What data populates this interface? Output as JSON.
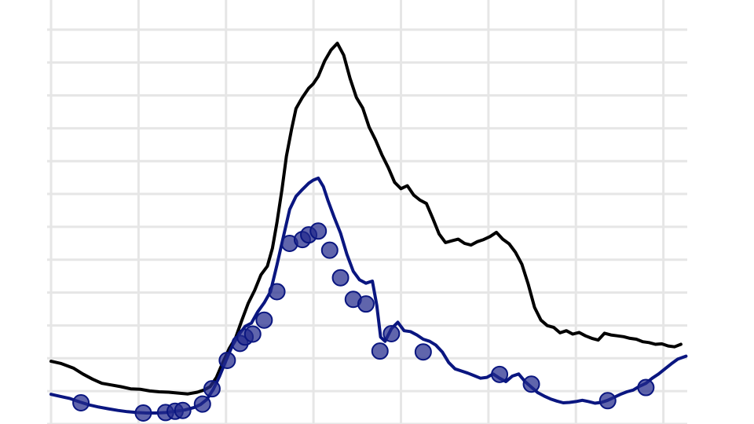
{
  "chart_data": {
    "type": "line",
    "title": "",
    "xlabel": "",
    "ylabel": "",
    "grid": true,
    "xlim": [
      0,
      100
    ],
    "ylim": [
      0,
      100
    ],
    "x_gridlines": [
      0,
      13.75,
      27.5,
      41.25,
      55,
      68.75,
      82.5,
      96.25
    ],
    "y_gridlines": [
      0,
      7.75,
      15.5,
      23.25,
      31,
      38.75,
      46.5,
      54.25,
      62,
      69.75,
      77.5,
      85.25,
      93
    ],
    "series": [
      {
        "color": "#000000",
        "markers": false,
        "points": [
          [
            0,
            14.8
          ],
          [
            1.5,
            14.3
          ],
          [
            3.5,
            13.2
          ],
          [
            5,
            11.8
          ],
          [
            6.5,
            10.6
          ],
          [
            8,
            9.6
          ],
          [
            9.5,
            9.2
          ],
          [
            11,
            8.8
          ],
          [
            12.5,
            8.3
          ],
          [
            14,
            8.2
          ],
          [
            15.5,
            7.8
          ],
          [
            17,
            7.6
          ],
          [
            18.5,
            7.5
          ],
          [
            20,
            7.3
          ],
          [
            21.5,
            7.1
          ],
          [
            23,
            7.5
          ],
          [
            24,
            8.0
          ],
          [
            25,
            8.8
          ],
          [
            26,
            11.0
          ],
          [
            27,
            14.5
          ],
          [
            28,
            17.8
          ],
          [
            29,
            20.3
          ],
          [
            30,
            24.5
          ],
          [
            31,
            28.5
          ],
          [
            32,
            31.5
          ],
          [
            33,
            35.2
          ],
          [
            34,
            37.2
          ],
          [
            34.8,
            41.5
          ],
          [
            35.5,
            47.5
          ],
          [
            36.3,
            55.3
          ],
          [
            37,
            63.2
          ],
          [
            37.8,
            69.5
          ],
          [
            38.5,
            74.4
          ],
          [
            39.5,
            77.0
          ],
          [
            40.5,
            79.2
          ],
          [
            41.2,
            80.2
          ],
          [
            42,
            82.0
          ],
          [
            43,
            85.6
          ],
          [
            44,
            88.2
          ],
          [
            45,
            89.8
          ],
          [
            46,
            87.0
          ],
          [
            47,
            81.5
          ],
          [
            48,
            77.0
          ],
          [
            49,
            74.5
          ],
          [
            50,
            70.0
          ],
          [
            51,
            67.0
          ],
          [
            52,
            63.5
          ],
          [
            53,
            60.5
          ],
          [
            54,
            57.0
          ],
          [
            55,
            55.5
          ],
          [
            56,
            56.2
          ],
          [
            57,
            54.0
          ],
          [
            58,
            52.8
          ],
          [
            59,
            52.0
          ],
          [
            60,
            48.5
          ],
          [
            61,
            44.8
          ],
          [
            62,
            42.8
          ],
          [
            63,
            43.2
          ],
          [
            64,
            43.6
          ],
          [
            65,
            42.6
          ],
          [
            66,
            42.2
          ],
          [
            67,
            43.0
          ],
          [
            68,
            43.5
          ],
          [
            69,
            44.2
          ],
          [
            70,
            45.2
          ],
          [
            71,
            43.6
          ],
          [
            72,
            42.5
          ],
          [
            73,
            40.5
          ],
          [
            74,
            37.7
          ],
          [
            75,
            33.0
          ],
          [
            76,
            27.5
          ],
          [
            77,
            24.5
          ],
          [
            78,
            23.2
          ],
          [
            79,
            22.8
          ],
          [
            80,
            21.5
          ],
          [
            81,
            22.0
          ],
          [
            82,
            21.2
          ],
          [
            83,
            21.6
          ],
          [
            84,
            20.8
          ],
          [
            85,
            20.2
          ],
          [
            86,
            19.8
          ],
          [
            87,
            21.4
          ],
          [
            88,
            21.0
          ],
          [
            89,
            20.8
          ],
          [
            90,
            20.6
          ],
          [
            91,
            20.2
          ],
          [
            92,
            20.0
          ],
          [
            93,
            19.4
          ],
          [
            94,
            19.2
          ],
          [
            95,
            18.8
          ],
          [
            96,
            18.9
          ],
          [
            97,
            18.4
          ],
          [
            98,
            18.2
          ],
          [
            99,
            18.8
          ]
        ]
      },
      {
        "color": "#0a1680",
        "markers": true,
        "marker_color": "#232a8c",
        "points": [
          [
            0,
            7.0
          ],
          [
            1.5,
            6.5
          ],
          [
            3,
            6.0
          ],
          [
            4.5,
            5.2
          ],
          [
            6,
            4.5
          ],
          [
            7.5,
            4.0
          ],
          [
            9,
            3.6
          ],
          [
            10.5,
            3.2
          ],
          [
            12,
            2.9
          ],
          [
            13.5,
            2.7
          ],
          [
            15,
            2.6
          ],
          [
            16.5,
            2.6
          ],
          [
            18,
            2.7
          ],
          [
            19.5,
            3.0
          ],
          [
            21,
            3.3
          ],
          [
            22.5,
            3.9
          ],
          [
            23.5,
            4.6
          ],
          [
            24.5,
            5.8
          ],
          [
            25.5,
            8.2
          ],
          [
            26.5,
            11.3
          ],
          [
            27.5,
            15.0
          ],
          [
            28.5,
            18.5
          ],
          [
            29.5,
            21.0
          ],
          [
            30.5,
            23.0
          ],
          [
            31.5,
            23.8
          ],
          [
            32.5,
            26.5
          ],
          [
            33.5,
            28.6
          ],
          [
            34.5,
            31.2
          ],
          [
            35.5,
            37.5
          ],
          [
            36.5,
            44.0
          ],
          [
            37.5,
            50.6
          ],
          [
            38.5,
            53.7
          ],
          [
            39.5,
            55.3
          ],
          [
            40.5,
            56.8
          ],
          [
            41.2,
            57.5
          ],
          [
            42,
            58.0
          ],
          [
            42.8,
            56.0
          ],
          [
            43.5,
            52.8
          ],
          [
            44.5,
            48.8
          ],
          [
            45.5,
            45.0
          ],
          [
            46.5,
            40.0
          ],
          [
            47.5,
            36.0
          ],
          [
            48.5,
            34.0
          ],
          [
            49.5,
            33.2
          ],
          [
            50.5,
            33.7
          ],
          [
            51.2,
            28.0
          ],
          [
            51.8,
            20.5
          ],
          [
            52.5,
            19.5
          ],
          [
            53.5,
            22.5
          ],
          [
            54.5,
            24.0
          ],
          [
            55.5,
            22.0
          ],
          [
            56.5,
            21.8
          ],
          [
            57.5,
            21.0
          ],
          [
            58.5,
            20.0
          ],
          [
            59.5,
            19.5
          ],
          [
            60.5,
            18.6
          ],
          [
            61.5,
            17.0
          ],
          [
            62.5,
            14.5
          ],
          [
            63.5,
            13.0
          ],
          [
            64.5,
            12.5
          ],
          [
            65.5,
            12.0
          ],
          [
            66.5,
            11.4
          ],
          [
            67.5,
            10.8
          ],
          [
            68.5,
            11.0
          ],
          [
            69.5,
            11.8
          ],
          [
            70.5,
            10.8
          ],
          [
            71.5,
            10.0
          ],
          [
            72.5,
            11.3
          ],
          [
            73.5,
            11.8
          ],
          [
            74.5,
            10.0
          ],
          [
            75.5,
            8.7
          ],
          [
            76.5,
            7.4
          ],
          [
            77.5,
            6.6
          ],
          [
            78.5,
            5.9
          ],
          [
            79.5,
            5.4
          ],
          [
            80.5,
            5.0
          ],
          [
            81.5,
            5.1
          ],
          [
            82.5,
            5.3
          ],
          [
            83.5,
            5.6
          ],
          [
            84.5,
            5.3
          ],
          [
            85.5,
            4.9
          ],
          [
            86.5,
            5.1
          ],
          [
            87.5,
            5.6
          ],
          [
            88.5,
            6.3
          ],
          [
            89.5,
            7.0
          ],
          [
            90.5,
            7.6
          ],
          [
            91.5,
            8.0
          ],
          [
            92.5,
            8.9
          ],
          [
            93.5,
            9.6
          ],
          [
            94.5,
            10.8
          ],
          [
            95.5,
            11.8
          ],
          [
            96.5,
            13.0
          ],
          [
            97.5,
            14.2
          ],
          [
            98.5,
            15.3
          ],
          [
            99.8,
            16.0
          ]
        ],
        "marker_points": [
          [
            4.7,
            5.0
          ],
          [
            14.5,
            2.6
          ],
          [
            18,
            2.7
          ],
          [
            19.5,
            3.0
          ],
          [
            20.7,
            3.2
          ],
          [
            23.8,
            4.7
          ],
          [
            25.3,
            8.3
          ],
          [
            27.7,
            15.0
          ],
          [
            29.7,
            19.0
          ],
          [
            30.5,
            20.5
          ],
          [
            31.7,
            21.2
          ],
          [
            33.5,
            24.5
          ],
          [
            35.5,
            31.2
          ],
          [
            37.5,
            42.6
          ],
          [
            39.5,
            43.5
          ],
          [
            40.5,
            44.6
          ],
          [
            42,
            45.5
          ],
          [
            43.8,
            41.0
          ],
          [
            45.5,
            34.5
          ],
          [
            47.5,
            29.4
          ],
          [
            49.5,
            28.3
          ],
          [
            51.7,
            17.2
          ],
          [
            53.5,
            21.3
          ],
          [
            58.5,
            17.0
          ],
          [
            70.5,
            11.7
          ],
          [
            75.5,
            9.4
          ],
          [
            87.5,
            5.5
          ],
          [
            93.5,
            8.6
          ]
        ]
      }
    ]
  }
}
